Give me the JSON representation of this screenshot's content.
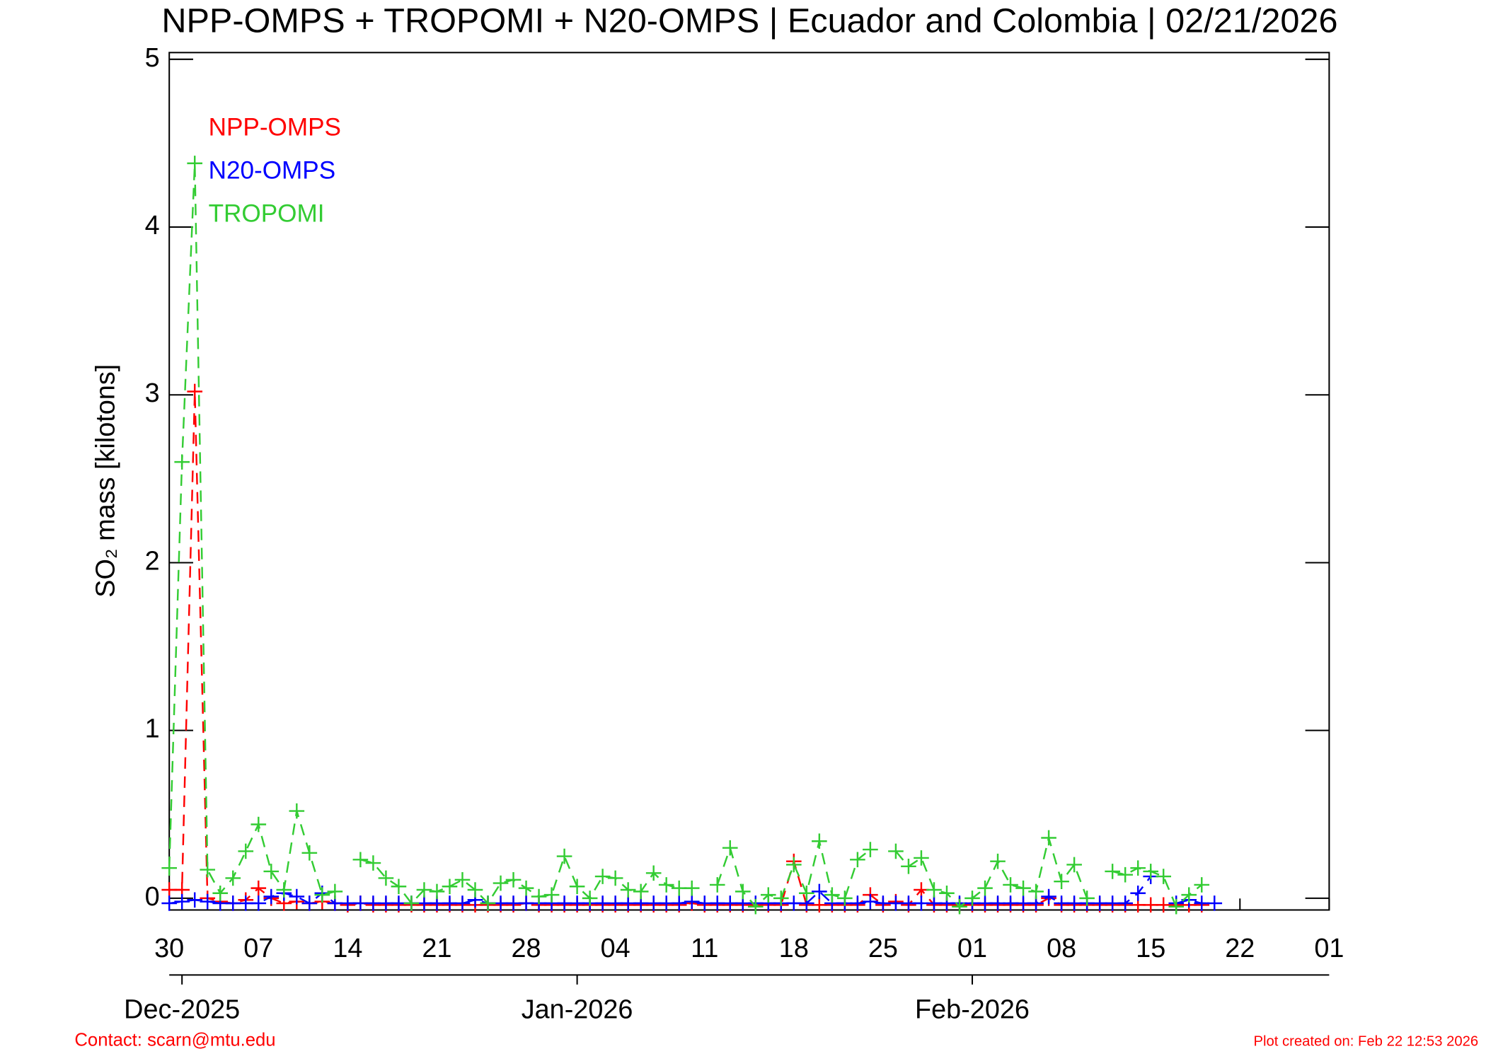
{
  "chart_data": {
    "type": "line",
    "title": "NPP-OMPS + TROPOMI + N20-OMPS | Ecuador and Colombia | 02/21/2026",
    "y_label": "SO₂ mass [kilotons]",
    "contact": "Contact: scarn@mtu.edu",
    "created": "Plot created on: Feb 22 12:53 2026",
    "legend": "upper left",
    "x": [
      "2025-11-30",
      "2025-12-01",
      "2025-12-02",
      "2025-12-03",
      "2025-12-04",
      "2025-12-05",
      "2025-12-06",
      "2025-12-07",
      "2025-12-08",
      "2025-12-09",
      "2025-12-10",
      "2025-12-11",
      "2025-12-12",
      "2025-12-13",
      "2025-12-14",
      "2025-12-15",
      "2025-12-16",
      "2025-12-17",
      "2025-12-18",
      "2025-12-19",
      "2025-12-20",
      "2025-12-21",
      "2025-12-22",
      "2025-12-23",
      "2025-12-24",
      "2025-12-25",
      "2025-12-26",
      "2025-12-27",
      "2025-12-28",
      "2025-12-29",
      "2025-12-30",
      "2025-12-31",
      "2026-01-01",
      "2026-01-02",
      "2026-01-03",
      "2026-01-04",
      "2026-01-05",
      "2026-01-06",
      "2026-01-07",
      "2026-01-08",
      "2026-01-09",
      "2026-01-10",
      "2026-01-11",
      "2026-01-12",
      "2026-01-13",
      "2026-01-14",
      "2026-01-15",
      "2026-01-16",
      "2026-01-17",
      "2026-01-18",
      "2026-01-19",
      "2026-01-20",
      "2026-01-21",
      "2026-01-22",
      "2026-01-23",
      "2026-01-24",
      "2026-01-25",
      "2026-01-26",
      "2026-01-27",
      "2026-01-28",
      "2026-01-29",
      "2026-01-30",
      "2026-01-31",
      "2026-02-01",
      "2026-02-02",
      "2026-02-03",
      "2026-02-04",
      "2026-02-05",
      "2026-02-06",
      "2026-02-07",
      "2026-02-08",
      "2026-02-09",
      "2026-02-10",
      "2026-02-11",
      "2026-02-12",
      "2026-02-13",
      "2026-02-14",
      "2026-02-15",
      "2026-02-16",
      "2026-02-17",
      "2026-02-18",
      "2026-02-19",
      "2026-02-20"
    ],
    "series": [
      {
        "name": "NPP-OMPS",
        "color": "#ff0000",
        "values": [
          0.05,
          0.05,
          3.02,
          0.0,
          -0.02,
          -0.03,
          -0.01,
          0.06,
          0.0,
          -0.03,
          -0.02,
          -0.03,
          -0.02,
          -0.03,
          -0.04,
          -0.03,
          -0.04,
          -0.04,
          -0.04,
          -0.04,
          -0.04,
          -0.04,
          -0.04,
          -0.04,
          -0.04,
          -0.04,
          -0.04,
          -0.04,
          -0.03,
          -0.04,
          -0.04,
          -0.04,
          -0.04,
          -0.04,
          -0.04,
          -0.04,
          -0.04,
          -0.04,
          -0.04,
          -0.04,
          -0.04,
          -0.03,
          -0.04,
          -0.04,
          -0.04,
          -0.04,
          -0.04,
          -0.04,
          -0.04,
          0.22,
          -0.04,
          -0.04,
          -0.04,
          -0.04,
          -0.04,
          0.02,
          -0.04,
          -0.02,
          -0.04,
          0.05,
          -0.04,
          -0.04,
          -0.04,
          -0.04,
          -0.04,
          -0.04,
          -0.04,
          -0.04,
          -0.04,
          0.0,
          -0.04,
          -0.04,
          -0.04,
          -0.04,
          -0.04,
          -0.04,
          -0.04,
          -0.04,
          -0.04,
          -0.04,
          -0.04,
          -0.04,
          null
        ]
      },
      {
        "name": "N20-OMPS",
        "color": "#0000ff",
        "values": [
          -0.03,
          -0.02,
          -0.01,
          -0.02,
          -0.03,
          -0.03,
          -0.03,
          -0.03,
          0.01,
          0.03,
          0.01,
          -0.03,
          0.03,
          -0.03,
          -0.03,
          -0.03,
          -0.03,
          -0.03,
          -0.03,
          -0.03,
          -0.03,
          -0.03,
          -0.03,
          -0.03,
          -0.01,
          -0.03,
          -0.03,
          -0.03,
          -0.03,
          -0.03,
          -0.03,
          -0.03,
          -0.03,
          -0.03,
          -0.03,
          -0.03,
          -0.03,
          -0.03,
          -0.03,
          -0.03,
          -0.03,
          -0.02,
          -0.03,
          -0.03,
          -0.03,
          -0.03,
          -0.03,
          -0.03,
          -0.03,
          -0.03,
          -0.03,
          0.04,
          -0.03,
          -0.03,
          -0.03,
          -0.02,
          -0.03,
          -0.03,
          -0.03,
          -0.03,
          -0.03,
          -0.03,
          -0.03,
          -0.03,
          -0.03,
          -0.03,
          -0.03,
          -0.03,
          -0.03,
          0.01,
          -0.03,
          -0.03,
          -0.03,
          -0.03,
          -0.03,
          -0.03,
          0.03,
          0.13,
          null,
          -0.03,
          -0.01,
          -0.03,
          -0.03
        ]
      },
      {
        "name": "TROPOMI",
        "color": "#33cc33",
        "values": [
          0.18,
          2.6,
          4.38,
          0.17,
          0.03,
          0.12,
          0.28,
          0.44,
          0.16,
          0.05,
          0.52,
          0.27,
          0.02,
          0.04,
          null,
          0.23,
          0.21,
          0.12,
          0.07,
          -0.03,
          0.05,
          0.04,
          0.07,
          0.11,
          0.05,
          -0.03,
          0.09,
          0.11,
          0.06,
          0.01,
          0.02,
          0.25,
          0.07,
          0.0,
          0.13,
          0.12,
          0.05,
          0.04,
          0.15,
          0.08,
          0.06,
          0.06,
          null,
          0.08,
          0.3,
          0.04,
          -0.05,
          0.02,
          0.0,
          0.2,
          0.03,
          0.34,
          0.02,
          0.0,
          0.23,
          0.29,
          null,
          0.28,
          0.19,
          0.24,
          0.05,
          0.03,
          -0.05,
          0.0,
          0.06,
          0.22,
          0.08,
          0.06,
          0.04,
          0.36,
          0.1,
          0.2,
          0.0,
          null,
          0.16,
          0.14,
          0.18,
          0.16,
          0.13,
          -0.05,
          0.02,
          0.08,
          null
        ]
      }
    ],
    "xlim": [
      "2025-11-30",
      "2026-03-01"
    ],
    "xticks": [
      {
        "value": "2025-11-30",
        "label": "30"
      },
      {
        "value": "2025-12-07",
        "label": "07"
      },
      {
        "value": "2025-12-14",
        "label": "14"
      },
      {
        "value": "2025-12-21",
        "label": "21"
      },
      {
        "value": "2025-12-28",
        "label": "28"
      },
      {
        "value": "2026-01-04",
        "label": "04"
      },
      {
        "value": "2026-01-11",
        "label": "11"
      },
      {
        "value": "2026-01-18",
        "label": "18"
      },
      {
        "value": "2026-01-25",
        "label": "25"
      },
      {
        "value": "2026-02-01",
        "label": "01"
      },
      {
        "value": "2026-02-08",
        "label": "08"
      },
      {
        "value": "2026-02-15",
        "label": "15"
      },
      {
        "value": "2026-02-22",
        "label": "22"
      },
      {
        "value": "2026-03-01",
        "label": "01"
      }
    ],
    "x2ticks": [
      {
        "value": "2025-12-01",
        "label": "Dec-2025"
      },
      {
        "value": "2026-01-01",
        "label": "Jan-2026"
      },
      {
        "value": "2026-02-01",
        "label": "Feb-2026"
      }
    ],
    "ylim": [
      -0.07,
      5.04
    ],
    "yticks": [
      0,
      1,
      2,
      3,
      4,
      5
    ]
  }
}
